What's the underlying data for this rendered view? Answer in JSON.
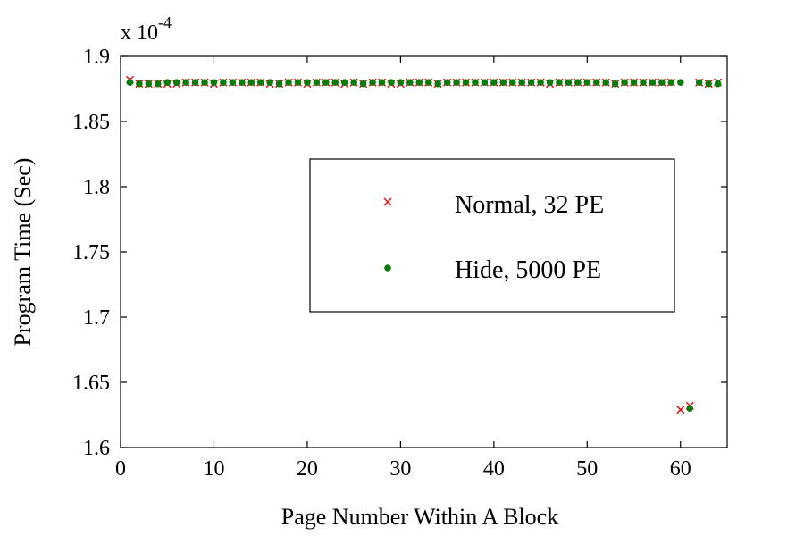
{
  "chart_data": {
    "type": "scatter",
    "xlabel": "Page Number Within A Block",
    "ylabel": "Program Time (Sec)",
    "exponent_label": "x 10",
    "exponent_power": "-4",
    "xlim": [
      0,
      65
    ],
    "ylim": [
      1.6,
      1.9
    ],
    "xticks": [
      "0",
      "10",
      "20",
      "30",
      "40",
      "50",
      "60"
    ],
    "yticks": [
      "1.6",
      "1.65",
      "1.7",
      "1.75",
      "1.8",
      "1.85",
      "1.9"
    ],
    "grid": false,
    "legend_position": "center-right",
    "series": [
      {
        "name": "Normal, 32 PE",
        "marker": "x",
        "color": "#e01010",
        "x": [
          1,
          2,
          3,
          4,
          5,
          6,
          7,
          8,
          9,
          10,
          11,
          12,
          13,
          14,
          15,
          16,
          17,
          18,
          19,
          20,
          21,
          22,
          23,
          24,
          25,
          26,
          27,
          28,
          29,
          30,
          31,
          32,
          33,
          34,
          35,
          36,
          37,
          38,
          39,
          40,
          41,
          42,
          43,
          44,
          45,
          46,
          47,
          48,
          49,
          50,
          51,
          52,
          53,
          54,
          55,
          56,
          57,
          58,
          59,
          60,
          61,
          62,
          63,
          64
        ],
        "y": [
          1.882,
          1.879,
          1.879,
          1.879,
          1.879,
          1.879,
          1.88,
          1.88,
          1.88,
          1.879,
          1.88,
          1.88,
          1.88,
          1.88,
          1.88,
          1.879,
          1.879,
          1.88,
          1.88,
          1.879,
          1.88,
          1.88,
          1.88,
          1.879,
          1.88,
          1.879,
          1.88,
          1.88,
          1.879,
          1.879,
          1.88,
          1.88,
          1.88,
          1.879,
          1.88,
          1.88,
          1.88,
          1.88,
          1.88,
          1.88,
          1.88,
          1.88,
          1.88,
          1.88,
          1.88,
          1.879,
          1.88,
          1.88,
          1.88,
          1.88,
          1.88,
          1.88,
          1.879,
          1.88,
          1.88,
          1.88,
          1.88,
          1.88,
          1.88,
          1.629,
          1.632,
          1.88,
          1.879,
          1.88
        ]
      },
      {
        "name": "Hide, 5000 PE",
        "marker": "dot",
        "color": "#0a7a0a",
        "x": [
          1,
          2,
          3,
          4,
          5,
          6,
          7,
          8,
          9,
          10,
          11,
          12,
          13,
          14,
          15,
          16,
          17,
          18,
          19,
          20,
          21,
          22,
          23,
          24,
          25,
          26,
          27,
          28,
          29,
          30,
          31,
          32,
          33,
          34,
          35,
          36,
          37,
          38,
          39,
          40,
          41,
          42,
          43,
          44,
          45,
          46,
          47,
          48,
          49,
          50,
          51,
          52,
          53,
          54,
          55,
          56,
          57,
          58,
          59,
          60,
          61,
          62,
          63,
          64
        ],
        "y": [
          1.88,
          1.879,
          1.879,
          1.879,
          1.88,
          1.88,
          1.88,
          1.88,
          1.88,
          1.88,
          1.88,
          1.88,
          1.88,
          1.88,
          1.88,
          1.88,
          1.879,
          1.88,
          1.88,
          1.88,
          1.88,
          1.88,
          1.88,
          1.88,
          1.88,
          1.879,
          1.88,
          1.88,
          1.88,
          1.88,
          1.88,
          1.88,
          1.88,
          1.879,
          1.88,
          1.88,
          1.88,
          1.88,
          1.88,
          1.88,
          1.88,
          1.88,
          1.88,
          1.88,
          1.88,
          1.88,
          1.88,
          1.88,
          1.88,
          1.88,
          1.88,
          1.88,
          1.879,
          1.88,
          1.88,
          1.88,
          1.88,
          1.88,
          1.88,
          1.88,
          1.63,
          1.88,
          1.879,
          1.879
        ]
      }
    ]
  }
}
